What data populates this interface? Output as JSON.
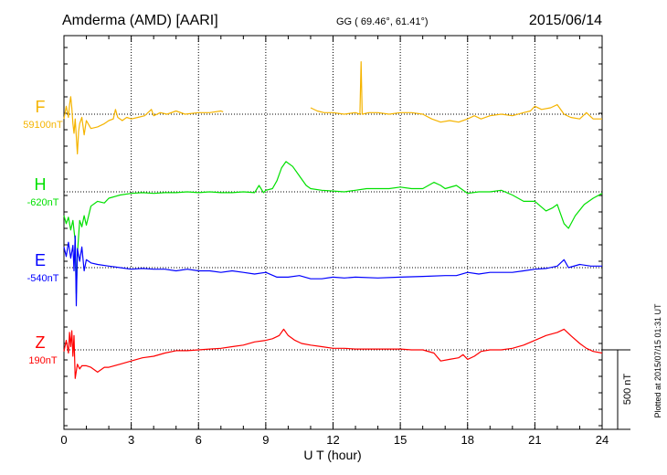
{
  "header": {
    "station": "Amderma (AMD)  [AARI]",
    "coords": "GG ( 69.46°,  61.41°)",
    "date": "2015/06/14"
  },
  "footer": {
    "plotted_at": "Plotted at 2015/07/15 01:31  UT"
  },
  "colors": {
    "F": "#f5b400",
    "H": "#00e000",
    "E": "#0000ff",
    "Z": "#ff0000",
    "axis": "#000000"
  },
  "chart_data": {
    "type": "line",
    "xlabel": "U T (hour)",
    "xlim": [
      0,
      24
    ],
    "x_ticks": [
      0,
      3,
      6,
      9,
      12,
      15,
      18,
      21,
      24
    ],
    "x_tick_labels": [
      "0",
      "3",
      "6",
      "9",
      "12",
      "15",
      "18",
      "21",
      "24"
    ],
    "grid": true,
    "scale_bar": {
      "label": "500 nT",
      "value_nT": 500
    },
    "series": [
      {
        "name": "F",
        "baseline_label": "59100nT",
        "baseline_nT": 59100,
        "gaps": [
          [
            7.1,
            11.0
          ]
        ],
        "points": [
          [
            0,
            -30
          ],
          [
            0.1,
            50
          ],
          [
            0.2,
            -20
          ],
          [
            0.25,
            60
          ],
          [
            0.3,
            110
          ],
          [
            0.35,
            40
          ],
          [
            0.4,
            -60
          ],
          [
            0.45,
            -120
          ],
          [
            0.5,
            -30
          ],
          [
            0.6,
            -250
          ],
          [
            0.65,
            -110
          ],
          [
            0.7,
            -60
          ],
          [
            0.8,
            -20
          ],
          [
            0.9,
            -130
          ],
          [
            1.0,
            -40
          ],
          [
            1.2,
            -90
          ],
          [
            1.5,
            -80
          ],
          [
            1.8,
            -60
          ],
          [
            2.0,
            -40
          ],
          [
            2.2,
            -30
          ],
          [
            2.3,
            30
          ],
          [
            2.4,
            -20
          ],
          [
            2.6,
            -40
          ],
          [
            2.8,
            -20
          ],
          [
            3.0,
            -30
          ],
          [
            3.3,
            -20
          ],
          [
            3.6,
            -10
          ],
          [
            3.9,
            30
          ],
          [
            4.0,
            -10
          ],
          [
            4.3,
            10
          ],
          [
            4.6,
            0
          ],
          [
            5.0,
            20
          ],
          [
            5.4,
            0
          ],
          [
            6.0,
            10
          ],
          [
            6.5,
            10
          ],
          [
            7.0,
            20
          ],
          [
            7.1,
            15
          ],
          [
            11.0,
            40
          ],
          [
            11.3,
            20
          ],
          [
            11.6,
            10
          ],
          [
            12.0,
            10
          ],
          [
            12.5,
            0
          ],
          [
            13.0,
            10
          ],
          [
            13.2,
            0
          ],
          [
            13.25,
            330
          ],
          [
            13.3,
            0
          ],
          [
            13.6,
            10
          ],
          [
            14.0,
            10
          ],
          [
            14.5,
            0
          ],
          [
            15.0,
            10
          ],
          [
            15.5,
            10
          ],
          [
            16.0,
            0
          ],
          [
            16.4,
            -30
          ],
          [
            16.8,
            -50
          ],
          [
            17.2,
            -40
          ],
          [
            17.6,
            -50
          ],
          [
            18.0,
            -30
          ],
          [
            18.3,
            -10
          ],
          [
            18.6,
            -30
          ],
          [
            19.0,
            -10
          ],
          [
            19.5,
            0
          ],
          [
            20.0,
            -10
          ],
          [
            20.5,
            10
          ],
          [
            20.8,
            20
          ],
          [
            21.0,
            50
          ],
          [
            21.3,
            30
          ],
          [
            21.7,
            40
          ],
          [
            22.0,
            60
          ],
          [
            22.3,
            0
          ],
          [
            22.6,
            -20
          ],
          [
            23.0,
            -30
          ],
          [
            23.3,
            10
          ],
          [
            23.6,
            -30
          ],
          [
            24,
            -30
          ]
        ]
      },
      {
        "name": "H",
        "baseline_label": "-620nT",
        "baseline_nT": -620,
        "points": [
          [
            0,
            -150
          ],
          [
            0.1,
            -200
          ],
          [
            0.2,
            -160
          ],
          [
            0.3,
            -240
          ],
          [
            0.4,
            -180
          ],
          [
            0.5,
            -310
          ],
          [
            0.55,
            -640
          ],
          [
            0.6,
            -390
          ],
          [
            0.7,
            -180
          ],
          [
            0.8,
            -220
          ],
          [
            0.9,
            -150
          ],
          [
            1.0,
            -210
          ],
          [
            1.2,
            -90
          ],
          [
            1.5,
            -60
          ],
          [
            1.8,
            -70
          ],
          [
            2.0,
            -40
          ],
          [
            2.5,
            -20
          ],
          [
            3.0,
            -10
          ],
          [
            3.5,
            -5
          ],
          [
            4.0,
            -10
          ],
          [
            4.5,
            -5
          ],
          [
            5.0,
            -5
          ],
          [
            5.5,
            0
          ],
          [
            6.0,
            -5
          ],
          [
            6.5,
            0
          ],
          [
            7.0,
            -5
          ],
          [
            7.5,
            -5
          ],
          [
            8.0,
            0
          ],
          [
            8.5,
            -5
          ],
          [
            8.7,
            40
          ],
          [
            8.9,
            -5
          ],
          [
            9.0,
            10
          ],
          [
            9.3,
            20
          ],
          [
            9.5,
            70
          ],
          [
            9.7,
            150
          ],
          [
            9.9,
            190
          ],
          [
            10.2,
            160
          ],
          [
            10.5,
            100
          ],
          [
            10.8,
            40
          ],
          [
            11.0,
            20
          ],
          [
            11.5,
            10
          ],
          [
            12.0,
            5
          ],
          [
            12.5,
            0
          ],
          [
            13.0,
            10
          ],
          [
            13.5,
            20
          ],
          [
            14.0,
            20
          ],
          [
            14.5,
            20
          ],
          [
            15.0,
            30
          ],
          [
            15.5,
            20
          ],
          [
            16.0,
            20
          ],
          [
            16.5,
            60
          ],
          [
            16.8,
            40
          ],
          [
            17.0,
            20
          ],
          [
            17.5,
            40
          ],
          [
            18.0,
            -10
          ],
          [
            18.5,
            0
          ],
          [
            19.0,
            0
          ],
          [
            19.5,
            10
          ],
          [
            20.0,
            -20
          ],
          [
            20.5,
            -60
          ],
          [
            21.0,
            -60
          ],
          [
            21.5,
            -120
          ],
          [
            21.8,
            -100
          ],
          [
            22.0,
            -80
          ],
          [
            22.3,
            -200
          ],
          [
            22.5,
            -230
          ],
          [
            22.8,
            -150
          ],
          [
            23.2,
            -80
          ],
          [
            23.6,
            -40
          ],
          [
            24,
            -10
          ]
        ]
      },
      {
        "name": "E",
        "baseline_label": "-540nT",
        "baseline_nT": -540,
        "points": [
          [
            0,
            130
          ],
          [
            0.1,
            70
          ],
          [
            0.2,
            160
          ],
          [
            0.3,
            60
          ],
          [
            0.4,
            140
          ],
          [
            0.45,
            -20
          ],
          [
            0.5,
            200
          ],
          [
            0.55,
            -240
          ],
          [
            0.6,
            120
          ],
          [
            0.7,
            40
          ],
          [
            0.8,
            130
          ],
          [
            0.9,
            -20
          ],
          [
            1.0,
            50
          ],
          [
            1.2,
            30
          ],
          [
            1.5,
            20
          ],
          [
            2.0,
            10
          ],
          [
            2.5,
            0
          ],
          [
            3.0,
            -10
          ],
          [
            3.5,
            -5
          ],
          [
            4.0,
            -10
          ],
          [
            4.5,
            -10
          ],
          [
            5.0,
            -20
          ],
          [
            5.5,
            -10
          ],
          [
            6.0,
            -20
          ],
          [
            6.5,
            -20
          ],
          [
            7.0,
            -30
          ],
          [
            7.5,
            -20
          ],
          [
            8.0,
            -30
          ],
          [
            8.5,
            -40
          ],
          [
            9.0,
            -30
          ],
          [
            9.5,
            -60
          ],
          [
            10.0,
            -60
          ],
          [
            10.5,
            -50
          ],
          [
            11.0,
            -70
          ],
          [
            11.5,
            -70
          ],
          [
            12.0,
            -60
          ],
          [
            12.5,
            -65
          ],
          [
            13.0,
            -60
          ],
          [
            14.0,
            -65
          ],
          [
            15.0,
            -60
          ],
          [
            16.0,
            -55
          ],
          [
            17.0,
            -50
          ],
          [
            17.5,
            -50
          ],
          [
            18.0,
            -30
          ],
          [
            18.5,
            -40
          ],
          [
            19.0,
            -30
          ],
          [
            19.5,
            -30
          ],
          [
            20.0,
            -30
          ],
          [
            20.5,
            -20
          ],
          [
            21.0,
            -10
          ],
          [
            21.5,
            -5
          ],
          [
            22.0,
            10
          ],
          [
            22.3,
            50
          ],
          [
            22.5,
            0
          ],
          [
            23.0,
            20
          ],
          [
            23.5,
            10
          ],
          [
            24,
            10
          ]
        ]
      },
      {
        "name": "Z",
        "baseline_label": "190nT",
        "baseline_nT": 190,
        "points": [
          [
            0,
            -10
          ],
          [
            0.1,
            60
          ],
          [
            0.2,
            -20
          ],
          [
            0.25,
            110
          ],
          [
            0.3,
            20
          ],
          [
            0.35,
            120
          ],
          [
            0.4,
            -40
          ],
          [
            0.45,
            90
          ],
          [
            0.5,
            -180
          ],
          [
            0.6,
            -90
          ],
          [
            0.7,
            -120
          ],
          [
            0.8,
            -100
          ],
          [
            1.0,
            -100
          ],
          [
            1.2,
            -110
          ],
          [
            1.5,
            -140
          ],
          [
            1.8,
            -110
          ],
          [
            2.0,
            -110
          ],
          [
            2.5,
            -90
          ],
          [
            3.0,
            -70
          ],
          [
            3.5,
            -50
          ],
          [
            4.0,
            -40
          ],
          [
            4.5,
            -20
          ],
          [
            5.0,
            -5
          ],
          [
            5.5,
            -5
          ],
          [
            6.0,
            0
          ],
          [
            6.5,
            5
          ],
          [
            7.0,
            10
          ],
          [
            7.5,
            20
          ],
          [
            8.0,
            30
          ],
          [
            8.5,
            50
          ],
          [
            9.0,
            60
          ],
          [
            9.3,
            70
          ],
          [
            9.6,
            90
          ],
          [
            9.8,
            130
          ],
          [
            10.0,
            90
          ],
          [
            10.3,
            60
          ],
          [
            10.6,
            40
          ],
          [
            11.0,
            30
          ],
          [
            11.5,
            20
          ],
          [
            12.0,
            10
          ],
          [
            12.5,
            10
          ],
          [
            13.0,
            5
          ],
          [
            13.5,
            5
          ],
          [
            14.0,
            5
          ],
          [
            14.5,
            5
          ],
          [
            15.0,
            5
          ],
          [
            15.5,
            0
          ],
          [
            16.0,
            0
          ],
          [
            16.5,
            -20
          ],
          [
            16.8,
            -70
          ],
          [
            17.2,
            -60
          ],
          [
            17.6,
            -50
          ],
          [
            17.8,
            -30
          ],
          [
            18.0,
            -60
          ],
          [
            18.3,
            -40
          ],
          [
            18.6,
            -10
          ],
          [
            19.0,
            0
          ],
          [
            19.5,
            0
          ],
          [
            20.0,
            10
          ],
          [
            20.5,
            30
          ],
          [
            21.0,
            60
          ],
          [
            21.5,
            90
          ],
          [
            22.0,
            110
          ],
          [
            22.3,
            130
          ],
          [
            22.6,
            90
          ],
          [
            23.0,
            40
          ],
          [
            23.3,
            10
          ],
          [
            23.6,
            -10
          ],
          [
            24,
            -20
          ]
        ]
      }
    ]
  }
}
